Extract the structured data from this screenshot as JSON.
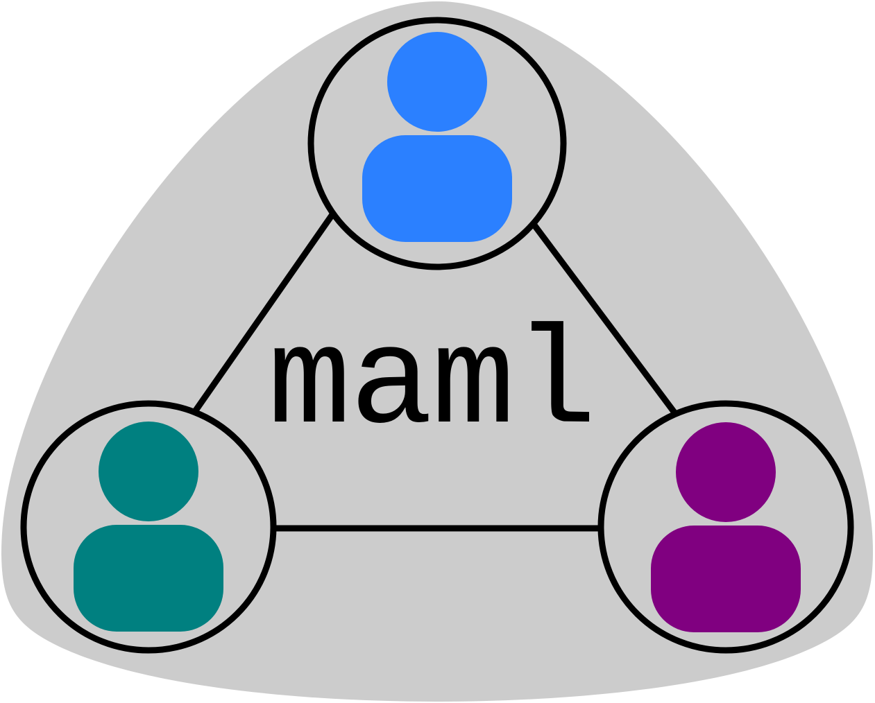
{
  "logo": {
    "text": "maml",
    "background_color": "#cccccc",
    "stroke_color": "#000000"
  },
  "nodes": [
    {
      "id": "top",
      "icon": "user-icon",
      "color": "#2b80ff"
    },
    {
      "id": "bottom-left",
      "icon": "user-icon",
      "color": "#008080"
    },
    {
      "id": "bottom-right",
      "icon": "user-icon",
      "color": "#800080"
    }
  ],
  "edges": [
    {
      "from": "top",
      "to": "bottom-left"
    },
    {
      "from": "top",
      "to": "bottom-right"
    },
    {
      "from": "bottom-left",
      "to": "bottom-right"
    }
  ]
}
